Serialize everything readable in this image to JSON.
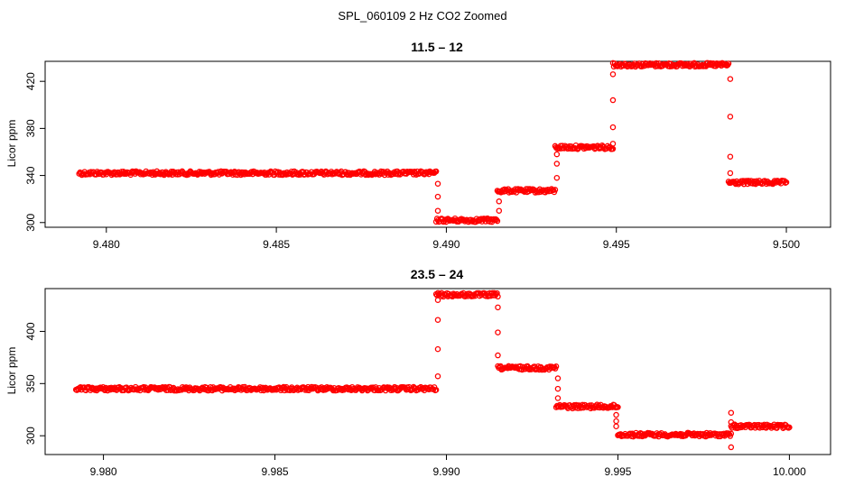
{
  "figure_title": "SPL_060109  2 Hz CO2 Zoomed",
  "colors": {
    "points": "#ff0000",
    "axes": "#000000",
    "background": "#ffffff"
  },
  "chart_data": [
    {
      "type": "scatter",
      "title": "11.5 – 12",
      "xlabel": "",
      "ylabel": "Licor ppm",
      "xlim": [
        9.4782,
        9.5013
      ],
      "ylim": [
        296,
        437
      ],
      "x_ticks": [
        9.48,
        9.485,
        9.49,
        9.495,
        9.5
      ],
      "x_tick_labels": [
        "9.480",
        "9.485",
        "9.490",
        "9.495",
        "9.500"
      ],
      "y_ticks": [
        300,
        340,
        380,
        420
      ],
      "y_tick_labels": [
        "300",
        "340",
        "380",
        "420"
      ],
      "marker": "open-circle",
      "segments": [
        {
          "x_start": 9.4792,
          "x_end": 9.4897,
          "level": 342
        },
        {
          "x_start": 9.4897,
          "x_end": 9.4915,
          "level": 302
        },
        {
          "x_start": 9.4915,
          "x_end": 9.4932,
          "level": 327
        },
        {
          "x_start": 9.4932,
          "x_end": 9.4949,
          "level": 364
        },
        {
          "x_start": 9.4949,
          "x_end": 9.4983,
          "level": 434
        },
        {
          "x_start": 9.4983,
          "x_end": 9.5,
          "level": 334
        }
      ],
      "transition_points": [
        {
          "x": 9.48975,
          "y": 333
        },
        {
          "x": 9.48975,
          "y": 322
        },
        {
          "x": 9.48975,
          "y": 310
        },
        {
          "x": 9.49155,
          "y": 310
        },
        {
          "x": 9.49155,
          "y": 318
        },
        {
          "x": 9.49325,
          "y": 338
        },
        {
          "x": 9.49325,
          "y": 350
        },
        {
          "x": 9.49325,
          "y": 358
        },
        {
          "x": 9.4949,
          "y": 367
        },
        {
          "x": 9.4949,
          "y": 381
        },
        {
          "x": 9.4949,
          "y": 404
        },
        {
          "x": 9.4949,
          "y": 426
        },
        {
          "x": 9.49835,
          "y": 422
        },
        {
          "x": 9.49835,
          "y": 390
        },
        {
          "x": 9.49835,
          "y": 356
        },
        {
          "x": 9.49835,
          "y": 342
        }
      ]
    },
    {
      "type": "scatter",
      "title": "23.5 – 24",
      "xlabel": "",
      "ylabel": "Licor ppm",
      "xlim": [
        9.9783,
        10.0012
      ],
      "ylim": [
        282,
        441
      ],
      "x_ticks": [
        9.98,
        9.985,
        9.99,
        9.995,
        10.0
      ],
      "x_tick_labels": [
        "9.980",
        "9.985",
        "9.990",
        "9.995",
        "10.000"
      ],
      "y_ticks": [
        300,
        350,
        400
      ],
      "y_tick_labels": [
        "300",
        "350",
        "400"
      ],
      "marker": "open-circle",
      "segments": [
        {
          "x_start": 9.9792,
          "x_end": 9.9897,
          "level": 345
        },
        {
          "x_start": 9.9897,
          "x_end": 9.9915,
          "level": 435
        },
        {
          "x_start": 9.9915,
          "x_end": 9.9932,
          "level": 365
        },
        {
          "x_start": 9.9932,
          "x_end": 9.995,
          "level": 328
        },
        {
          "x_start": 9.995,
          "x_end": 9.9983,
          "level": 301
        },
        {
          "x_start": 9.9983,
          "x_end": 10.0,
          "level": 309
        }
      ],
      "transition_points": [
        {
          "x": 9.98975,
          "y": 357
        },
        {
          "x": 9.98975,
          "y": 383
        },
        {
          "x": 9.98975,
          "y": 411
        },
        {
          "x": 9.98975,
          "y": 430
        },
        {
          "x": 9.9915,
          "y": 423
        },
        {
          "x": 9.9915,
          "y": 399
        },
        {
          "x": 9.9915,
          "y": 377
        },
        {
          "x": 9.99325,
          "y": 355
        },
        {
          "x": 9.99325,
          "y": 345
        },
        {
          "x": 9.99325,
          "y": 336
        },
        {
          "x": 9.99495,
          "y": 320
        },
        {
          "x": 9.99495,
          "y": 314
        },
        {
          "x": 9.99495,
          "y": 309
        },
        {
          "x": 9.9983,
          "y": 322
        },
        {
          "x": 9.9983,
          "y": 289
        },
        {
          "x": 9.9983,
          "y": 313
        }
      ]
    }
  ]
}
